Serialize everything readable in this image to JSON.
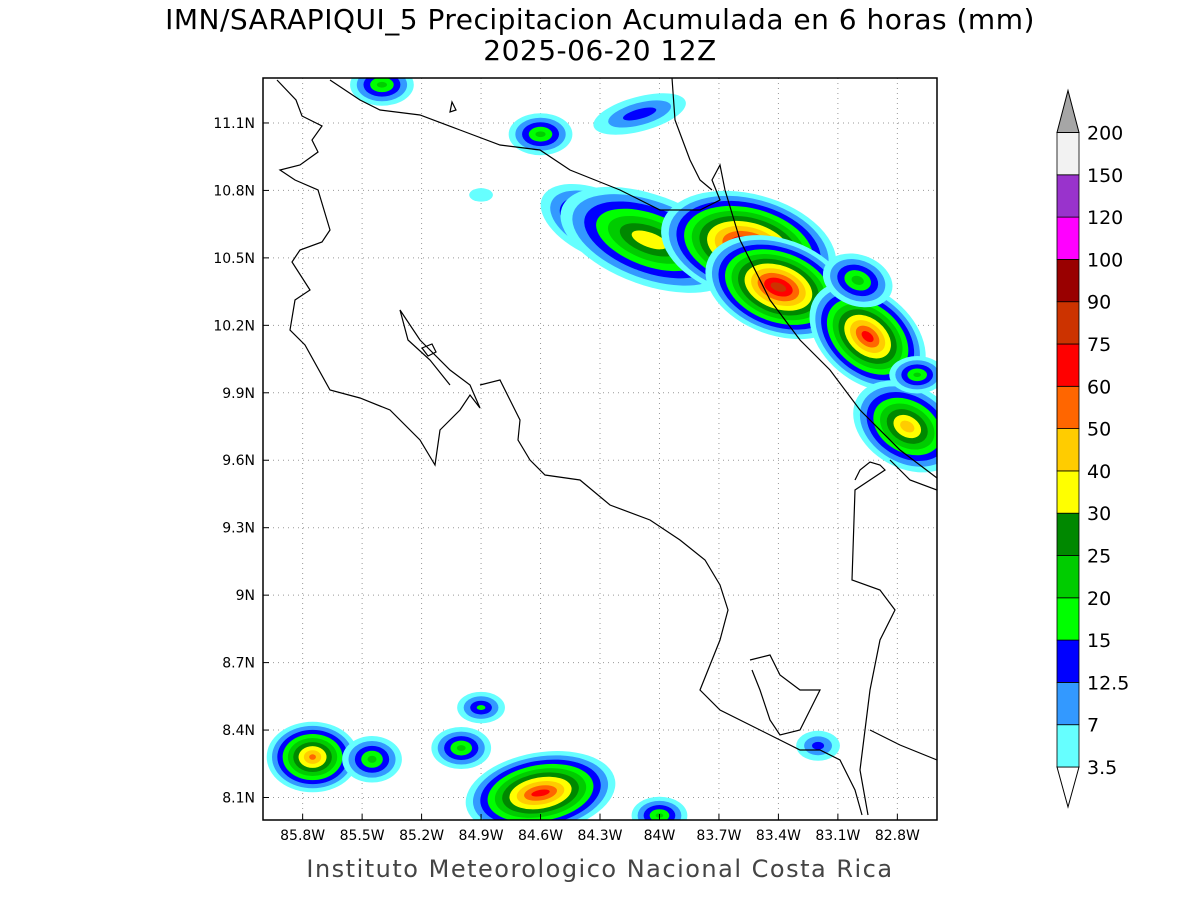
{
  "title": "IMN/SARAPIQUI_5 Precipitacion Acumulada en 6 horas (mm)",
  "subtitle": "2025-06-20 12Z",
  "footer": "Instituto Meteorologico Nacional Costa Rica",
  "map": {
    "lon_range": [
      -86.0,
      -82.6
    ],
    "lat_range": [
      8.0,
      11.3
    ],
    "lon_ticks": [
      "85.8W",
      "85.5W",
      "85.2W",
      "84.9W",
      "84.6W",
      "84.3W",
      "84W",
      "83.7W",
      "83.4W",
      "83.1W",
      "82.8W"
    ],
    "lon_tick_values": [
      -85.8,
      -85.5,
      -85.2,
      -84.9,
      -84.6,
      -84.3,
      -84.0,
      -83.7,
      -83.4,
      -83.1,
      -82.8
    ],
    "lat_ticks": [
      "11.1N",
      "10.8N",
      "10.5N",
      "10.2N",
      "9.9N",
      "9.6N",
      "9.3N",
      "9N",
      "8.7N",
      "8.4N",
      "8.1N"
    ],
    "lat_tick_values": [
      11.1,
      10.8,
      10.5,
      10.2,
      9.9,
      9.6,
      9.3,
      9.0,
      8.7,
      8.4,
      8.1
    ],
    "grid": true
  },
  "legend": {
    "placement": "right",
    "levels": [
      {
        "label": "3.5",
        "color": "#66ffff"
      },
      {
        "label": "7",
        "color": "#3399ff"
      },
      {
        "label": "12.5",
        "color": "#0000ff"
      },
      {
        "label": "15",
        "color": "#00ff00"
      },
      {
        "label": "20",
        "color": "#00cc00"
      },
      {
        "label": "25",
        "color": "#008800"
      },
      {
        "label": "30",
        "color": "#ffff00"
      },
      {
        "label": "40",
        "color": "#ffcc00"
      },
      {
        "label": "50",
        "color": "#ff6600"
      },
      {
        "label": "60",
        "color": "#ff0000"
      },
      {
        "label": "75",
        "color": "#cc3300"
      },
      {
        "label": "90",
        "color": "#990000"
      },
      {
        "label": "100",
        "color": "#ff00ff"
      },
      {
        "label": "120",
        "color": "#9933cc"
      },
      {
        "label": "150",
        "color": "#f2f2f2"
      },
      {
        "label": "200",
        "color": "#a6a6a6"
      }
    ]
  },
  "precip_cells": [
    {
      "lon": -84.3,
      "lat": 10.65,
      "rx": 0.22,
      "ry": 0.08,
      "rot": 25,
      "level": 5
    },
    {
      "lon": -84.05,
      "lat": 10.58,
      "rx": 0.35,
      "ry": 0.12,
      "rot": 20,
      "level": 6
    },
    {
      "lon": -83.55,
      "lat": 10.55,
      "rx": 0.25,
      "ry": 0.1,
      "rot": 15,
      "level": 10
    },
    {
      "lon": -83.4,
      "lat": 10.37,
      "rx": 0.18,
      "ry": 0.08,
      "rot": 20,
      "level": 10
    },
    {
      "lon": -82.95,
      "lat": 10.15,
      "rx": 0.15,
      "ry": 0.08,
      "rot": 40,
      "level": 9
    },
    {
      "lon": -82.75,
      "lat": 9.75,
      "rx": 0.15,
      "ry": 0.09,
      "rot": 30,
      "level": 7
    },
    {
      "lon": -84.6,
      "lat": 8.12,
      "rx": 0.2,
      "ry": 0.06,
      "rot": -10,
      "level": 9
    },
    {
      "lon": -85.75,
      "lat": 8.28,
      "rx": 0.07,
      "ry": 0.05,
      "rot": 0,
      "level": 8
    },
    {
      "lon": -85.45,
      "lat": 8.27,
      "rx": 0.07,
      "ry": 0.05,
      "rot": 0,
      "level": 4
    },
    {
      "lon": -85.0,
      "lat": 8.32,
      "rx": 0.07,
      "ry": 0.04,
      "rot": 0,
      "level": 4
    },
    {
      "lon": -84.6,
      "lat": 11.05,
      "rx": 0.08,
      "ry": 0.04,
      "rot": 0,
      "level": 4
    },
    {
      "lon": -85.4,
      "lat": 11.27,
      "rx": 0.08,
      "ry": 0.04,
      "rot": 0,
      "level": 4
    },
    {
      "lon": -83.2,
      "lat": 8.33,
      "rx": 0.07,
      "ry": 0.04,
      "rot": 0,
      "level": 2
    },
    {
      "lon": -84.1,
      "lat": 11.14,
      "rx": 0.2,
      "ry": 0.05,
      "rot": -15,
      "level": 2
    },
    {
      "lon": -84.9,
      "lat": 8.5,
      "rx": 0.06,
      "ry": 0.03,
      "rot": 0,
      "level": 3
    },
    {
      "lon": -84.9,
      "lat": 10.78,
      "rx": 0.06,
      "ry": 0.03,
      "rot": 0,
      "level": 0
    },
    {
      "lon": -83.0,
      "lat": 10.4,
      "rx": 0.1,
      "ry": 0.06,
      "rot": 20,
      "level": 4
    },
    {
      "lon": -82.7,
      "lat": 9.98,
      "rx": 0.06,
      "ry": 0.03,
      "rot": 0,
      "level": 4
    },
    {
      "lon": -84.0,
      "lat": 8.02,
      "rx": 0.06,
      "ry": 0.03,
      "rot": 0,
      "level": 4
    }
  ]
}
